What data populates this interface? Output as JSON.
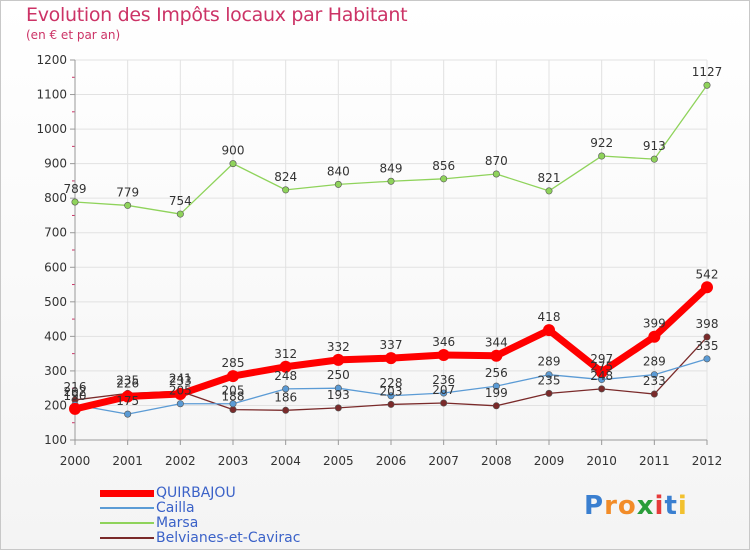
{
  "chart_data": {
    "type": "line",
    "title": "Evolution des Impôts locaux par Habitant",
    "subtitle": "(en € et par an)",
    "x": [
      "2000",
      "2001",
      "2002",
      "2003",
      "2004",
      "2005",
      "2006",
      "2007",
      "2008",
      "2009",
      "2010",
      "2011",
      "2012"
    ],
    "ylim": [
      100,
      1200
    ],
    "yticks": [
      100,
      200,
      300,
      400,
      500,
      600,
      700,
      800,
      900,
      1000,
      1100,
      1200
    ],
    "grid": true,
    "legend_position": "bottom-left",
    "series": [
      {
        "name": "QUIRBAJOU",
        "color": "#ff0000",
        "values": [
          190,
          226,
          233,
          285,
          312,
          332,
          337,
          346,
          344,
          418,
          297,
          399,
          542
        ],
        "labels": [
          "190",
          "226",
          "233",
          "285",
          "312",
          "332",
          "337",
          "346",
          "344",
          "418",
          "297",
          "399",
          "542"
        ]
      },
      {
        "name": "Cailla",
        "color": "#5b9bd5",
        "values": [
          202,
          175,
          205,
          205,
          248,
          250,
          228,
          236,
          256,
          289,
          275,
          289,
          335
        ],
        "labels": [
          "202",
          "175",
          "205",
          "205",
          "248",
          "250",
          "228",
          "236",
          "256",
          "289",
          "275",
          "289",
          "335"
        ]
      },
      {
        "name": "Marsa",
        "color": "#8fd35b",
        "values": [
          789,
          779,
          754,
          900,
          824,
          840,
          849,
          856,
          870,
          821,
          922,
          913,
          1127
        ],
        "labels": [
          "789",
          "779",
          "754",
          "900",
          "824",
          "840",
          "849",
          "856",
          "870",
          "821",
          "922",
          "913",
          "1127"
        ]
      },
      {
        "name": "Belvianes-et-Cavirac",
        "color": "#7a2a2a",
        "values": [
          216,
          235,
          241,
          188,
          186,
          193,
          203,
          207,
          199,
          235,
          248,
          233,
          398
        ],
        "labels": [
          "216",
          "235",
          "241",
          "188",
          "186",
          "193",
          "203",
          "207",
          "199",
          "235",
          "248",
          "233",
          "398"
        ]
      }
    ]
  },
  "logo": {
    "text": "Proxiti",
    "letters": [
      {
        "ch": "P",
        "color": "#3a7fd0"
      },
      {
        "ch": "r",
        "color": "#f28c28"
      },
      {
        "ch": "o",
        "color": "#f28c28"
      },
      {
        "ch": "x",
        "color": "#2a9d3a"
      },
      {
        "ch": "i",
        "color": "#e63b3b"
      },
      {
        "ch": "t",
        "color": "#3a7fd0"
      },
      {
        "ch": "i",
        "color": "#f2c12e"
      }
    ]
  }
}
